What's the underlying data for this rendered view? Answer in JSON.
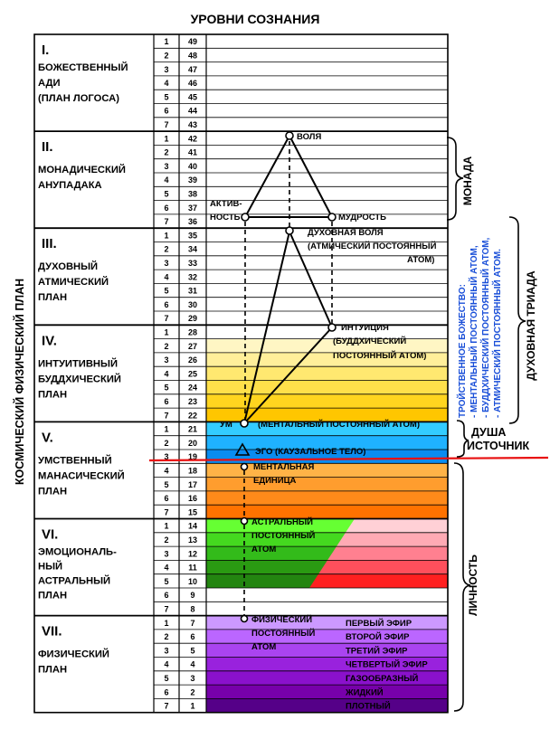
{
  "title": "УРОВНИ СОЗНАНИЯ",
  "side_label_left": "КОСМИЧЕСКИЙ ФИЗИЧЕСКИЙ ПЛАН",
  "planes": [
    {
      "numeral": "I.",
      "lines": [
        "БОЖЕСТВЕННЫЙ",
        "АДИ",
        "(ПЛАН ЛОГОСА)"
      ]
    },
    {
      "numeral": "II.",
      "lines": [
        "МОНАДИЧЕСКИЙ",
        "АНУПАДАКА"
      ]
    },
    {
      "numeral": "III.",
      "lines": [
        "ДУХОВНЫЙ",
        "АТМИЧЕСКИЙ",
        "ПЛАН"
      ]
    },
    {
      "numeral": "IV.",
      "lines": [
        "ИНТУИТИВНЫЙ",
        "БУДДХИЧЕСКИЙ",
        "ПЛАН"
      ]
    },
    {
      "numeral": "V.",
      "lines": [
        "УМСТВЕННЫЙ",
        "МАНАСИЧЕСКИЙ",
        "ПЛАН"
      ]
    },
    {
      "numeral": "VI.",
      "lines": [
        "ЭМОЦИОНАЛЬ-",
        "НЫЙ",
        "АСТРАЛЬНЫЙ",
        "ПЛАН"
      ]
    },
    {
      "numeral": "VII.",
      "lines": [
        "ФИЗИЧЕСКИЙ",
        "ПЛАН"
      ]
    }
  ],
  "subplane_numbers": [
    "1",
    "2",
    "3",
    "4",
    "5",
    "6",
    "7"
  ],
  "level_numbers": [
    "49",
    "48",
    "47",
    "46",
    "45",
    "44",
    "43",
    "42",
    "41",
    "40",
    "39",
    "38",
    "37",
    "36",
    "35",
    "34",
    "33",
    "32",
    "31",
    "30",
    "29",
    "28",
    "27",
    "26",
    "25",
    "24",
    "23",
    "22",
    "21",
    "20",
    "19",
    "18",
    "17",
    "16",
    "15",
    "14",
    "13",
    "12",
    "11",
    "10",
    "9",
    "8",
    "7",
    "6",
    "5",
    "4",
    "3",
    "2",
    "1"
  ],
  "row_colors": [
    "#ffffff",
    "#ffffff",
    "#ffffff",
    "#ffffff",
    "#ffffff",
    "#ffffff",
    "#ffffff",
    "#ffffff",
    "#ffffff",
    "#ffffff",
    "#ffffff",
    "#ffffff",
    "#ffffff",
    "#ffffff",
    "#ffffff",
    "#ffffff",
    "#ffffff",
    "#ffffff",
    "#ffffff",
    "#ffffff",
    "#ffffff",
    "#ffffff",
    "#fff6c4",
    "#ffef9a",
    "#ffe870",
    "#ffe04a",
    "#ffd51f",
    "#ffc600",
    "#33ccff",
    "#1fb2ff",
    "#0a8cf0",
    "#ffb347",
    "#ff9d2e",
    "#ff8a1a",
    "#ff7200",
    "#66ff33",
    "#44d91f",
    "#33bb1a",
    "#2a9a12",
    "#238510",
    "#ffffff",
    "#ffffff",
    "#cc99ff",
    "#bb66ff",
    "#aa44f0",
    "#9922dd",
    "#8a11cc",
    "#7700aa",
    "#550088"
  ],
  "astral_colors": [
    "#ffd0d6",
    "#ffaab4",
    "#ff8090",
    "#ff4f5c",
    "#ff2020"
  ],
  "annotations": {
    "volya": "ВОЛЯ",
    "aktiv1": "АКТИВ-",
    "aktiv2": "НОСТЬ",
    "mudrost": "МУДРОСТЬ",
    "dukh_volya": "ДУХОВНАЯ ВОЛЯ",
    "atmic_atom_1": "(АТМИЧЕСКИЙ ПОСТОЯННЫЙ",
    "atmic_atom_2": "АТОМ)",
    "intuitsiya": "ИНТУИЦИЯ",
    "buddhic_1": "(БУДДХИЧЕСКИЙ",
    "buddhic_2": "ПОСТОЯННЫЙ АТОМ)",
    "um": "УМ",
    "mental_atom": "(МЕНТАЛЬНЫЙ ПОСТОЯННЫЙ АТОМ)",
    "ego": "ЭГО (КАУЗАЛЬНОЕ ТЕЛО)",
    "mental_unit_1": "МЕНТАЛЬНАЯ",
    "mental_unit_2": "ЕДИНИЦА",
    "astral_atom_1": "АСТРАЛЬНЫЙ",
    "astral_atom_2": "ПОСТОЯННЫЙ",
    "astral_atom_3": "АТОМ",
    "phys_atom_1": "ФИЗИЧЕСКИЙ",
    "phys_atom_2": "ПОСТОЯННЫЙ",
    "phys_atom_3": "АТОМ"
  },
  "ethers": [
    "ПЕРВЫЙ ЭФИР",
    "ВТОРОЙ ЭФИР",
    "ТРЕТИЙ ЭФИР",
    "ЧЕТВЕРТЫЙ  ЭФИР",
    "ГАЗООБРАЗНЫЙ",
    "ЖИДКИЙ",
    "ПЛОТНЫЙ"
  ],
  "side_labels": {
    "monada": "МОНАДА",
    "triple_1": "ТРОЙСТВЕННОЕ БОЖЕСТВО:",
    "triple_2": "- МЕНТАЛЬНЫЙ ПОСТОЯННЫЙ АТОМ,",
    "triple_3": "- БУДДХИЧЕСКИЙ ПОСТОЯННЫЙ АТОМ,",
    "triple_4": "- АТМИЧЕСКИЙ ПОСТОЯННЫЙ АТОМ.",
    "triada": "ДУХОВНАЯ ТРИАДА",
    "dusha": "ДУША",
    "istochnik": "ИСТОЧНИК",
    "lichnost": "ЛИЧНОСТЬ"
  },
  "colors": {
    "blue_text": "#1a4fd8",
    "red_line": "#e81010"
  }
}
